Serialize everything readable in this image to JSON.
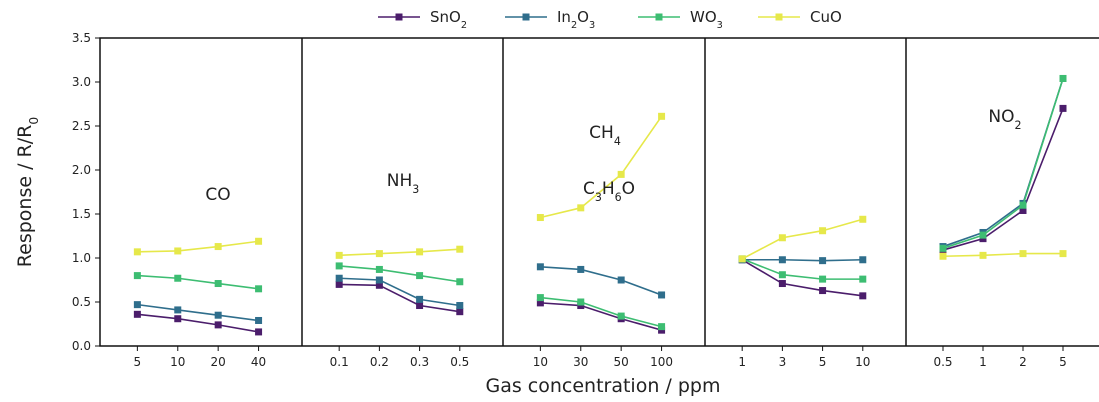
{
  "chart_data": {
    "type": "line",
    "ylabel": {
      "main": "Response / R/R",
      "sub": "0"
    },
    "xlabel": "Gas concentration / ppm",
    "ylim": [
      0,
      3.5
    ],
    "yticks": [
      "0.0",
      "0.5",
      "1.0",
      "1.5",
      "2.0",
      "2.5",
      "3.0",
      "3.5"
    ],
    "grid": false,
    "legend_position": "top-center",
    "series": [
      {
        "name": "SnO",
        "sub": "2",
        "color": "#4b1d6b"
      },
      {
        "name": "In",
        "sub": "2",
        "name2": "O",
        "sub2": "3",
        "color": "#2f6e8c"
      },
      {
        "name": "WO",
        "sub": "3",
        "color": "#3dbd72"
      },
      {
        "name": "CuO",
        "sub": "",
        "color": "#e6e84a"
      }
    ],
    "panels": [
      {
        "label": [
          [
            "CO",
            ""
          ]
        ],
        "categories": [
          "5",
          "10",
          "20",
          "40"
        ],
        "values": [
          [
            0.36,
            0.31,
            0.24,
            0.16
          ],
          [
            0.47,
            0.41,
            0.35,
            0.29
          ],
          [
            0.8,
            0.77,
            0.71,
            0.65
          ],
          [
            1.07,
            1.08,
            1.13,
            1.19
          ]
        ]
      },
      {
        "label": [
          [
            "NH",
            "3"
          ]
        ],
        "categories": [
          "0.1",
          "0.2",
          "0.3",
          "0.5"
        ],
        "values": [
          [
            0.7,
            0.69,
            0.46,
            0.39
          ],
          [
            0.77,
            0.75,
            0.53,
            0.46
          ],
          [
            0.91,
            0.87,
            0.8,
            0.73
          ],
          [
            1.03,
            1.05,
            1.07,
            1.1
          ]
        ]
      },
      {
        "label": [
          [
            "CH",
            "4"
          ]
        ],
        "categories": [
          "10",
          "30",
          "50",
          "100"
        ],
        "values": [
          [
            0.49,
            0.46,
            0.31,
            0.18
          ],
          [
            0.9,
            0.87,
            0.75,
            0.58
          ],
          [
            0.55,
            0.5,
            0.34,
            0.22
          ],
          [
            1.46,
            1.57,
            1.95,
            2.61
          ]
        ]
      },
      {
        "label": [
          [
            "C",
            "3"
          ],
          [
            "H",
            "6"
          ],
          [
            "O",
            ""
          ]
        ],
        "categories": [
          "1",
          "3",
          "5",
          "10"
        ],
        "values": [
          [
            0.98,
            0.71,
            0.63,
            0.57
          ],
          [
            0.98,
            0.98,
            0.97,
            0.98
          ],
          [
            0.99,
            0.81,
            0.76,
            0.76
          ],
          [
            0.99,
            1.23,
            1.31,
            1.44
          ]
        ]
      },
      {
        "label": [
          [
            "NO",
            "2"
          ]
        ],
        "categories": [
          "0.5",
          "1",
          "2",
          "5"
        ],
        "values": [
          [
            1.09,
            1.22,
            1.54,
            2.7
          ],
          [
            1.13,
            1.29,
            1.62,
            3.04
          ],
          [
            1.11,
            1.26,
            1.6,
            3.04
          ],
          [
            1.02,
            1.03,
            1.05,
            1.05
          ]
        ]
      }
    ]
  }
}
